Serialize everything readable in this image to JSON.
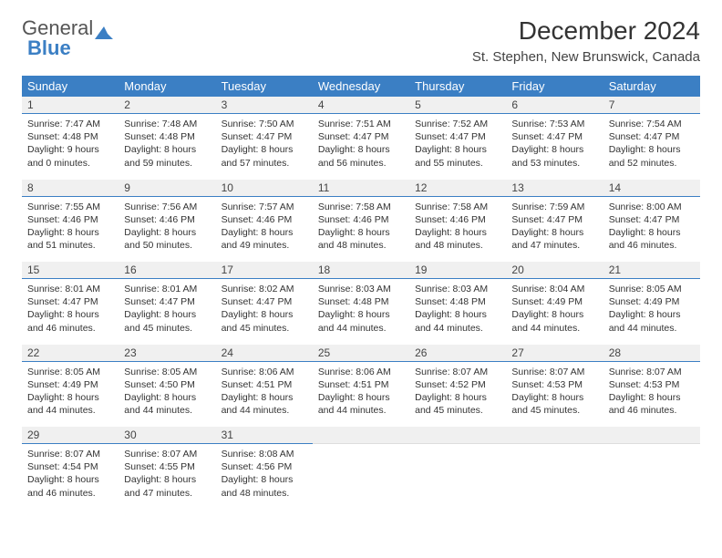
{
  "logo": {
    "text1": "General",
    "text2": "Blue"
  },
  "title": "December 2024",
  "subtitle": "St. Stephen, New Brunswick, Canada",
  "header_bg": "#3b7fc4",
  "header_text_color": "#ffffff",
  "daynum_bg": "#f0f0f0",
  "daynum_border": "#3b7fc4",
  "text_color": "#333333",
  "font_family": "Arial, Helvetica, sans-serif",
  "title_fontsize": 28,
  "subtitle_fontsize": 15,
  "header_fontsize": 13,
  "daynum_fontsize": 12,
  "cell_fontsize": 10.5,
  "days": [
    "Sunday",
    "Monday",
    "Tuesday",
    "Wednesday",
    "Thursday",
    "Friday",
    "Saturday"
  ],
  "weeks": [
    [
      {
        "n": "1",
        "sunrise": "7:47 AM",
        "sunset": "4:48 PM",
        "daylight": "9 hours and 0 minutes."
      },
      {
        "n": "2",
        "sunrise": "7:48 AM",
        "sunset": "4:48 PM",
        "daylight": "8 hours and 59 minutes."
      },
      {
        "n": "3",
        "sunrise": "7:50 AM",
        "sunset": "4:47 PM",
        "daylight": "8 hours and 57 minutes."
      },
      {
        "n": "4",
        "sunrise": "7:51 AM",
        "sunset": "4:47 PM",
        "daylight": "8 hours and 56 minutes."
      },
      {
        "n": "5",
        "sunrise": "7:52 AM",
        "sunset": "4:47 PM",
        "daylight": "8 hours and 55 minutes."
      },
      {
        "n": "6",
        "sunrise": "7:53 AM",
        "sunset": "4:47 PM",
        "daylight": "8 hours and 53 minutes."
      },
      {
        "n": "7",
        "sunrise": "7:54 AM",
        "sunset": "4:47 PM",
        "daylight": "8 hours and 52 minutes."
      }
    ],
    [
      {
        "n": "8",
        "sunrise": "7:55 AM",
        "sunset": "4:46 PM",
        "daylight": "8 hours and 51 minutes."
      },
      {
        "n": "9",
        "sunrise": "7:56 AM",
        "sunset": "4:46 PM",
        "daylight": "8 hours and 50 minutes."
      },
      {
        "n": "10",
        "sunrise": "7:57 AM",
        "sunset": "4:46 PM",
        "daylight": "8 hours and 49 minutes."
      },
      {
        "n": "11",
        "sunrise": "7:58 AM",
        "sunset": "4:46 PM",
        "daylight": "8 hours and 48 minutes."
      },
      {
        "n": "12",
        "sunrise": "7:58 AM",
        "sunset": "4:46 PM",
        "daylight": "8 hours and 48 minutes."
      },
      {
        "n": "13",
        "sunrise": "7:59 AM",
        "sunset": "4:47 PM",
        "daylight": "8 hours and 47 minutes."
      },
      {
        "n": "14",
        "sunrise": "8:00 AM",
        "sunset": "4:47 PM",
        "daylight": "8 hours and 46 minutes."
      }
    ],
    [
      {
        "n": "15",
        "sunrise": "8:01 AM",
        "sunset": "4:47 PM",
        "daylight": "8 hours and 46 minutes."
      },
      {
        "n": "16",
        "sunrise": "8:01 AM",
        "sunset": "4:47 PM",
        "daylight": "8 hours and 45 minutes."
      },
      {
        "n": "17",
        "sunrise": "8:02 AM",
        "sunset": "4:47 PM",
        "daylight": "8 hours and 45 minutes."
      },
      {
        "n": "18",
        "sunrise": "8:03 AM",
        "sunset": "4:48 PM",
        "daylight": "8 hours and 44 minutes."
      },
      {
        "n": "19",
        "sunrise": "8:03 AM",
        "sunset": "4:48 PM",
        "daylight": "8 hours and 44 minutes."
      },
      {
        "n": "20",
        "sunrise": "8:04 AM",
        "sunset": "4:49 PM",
        "daylight": "8 hours and 44 minutes."
      },
      {
        "n": "21",
        "sunrise": "8:05 AM",
        "sunset": "4:49 PM",
        "daylight": "8 hours and 44 minutes."
      }
    ],
    [
      {
        "n": "22",
        "sunrise": "8:05 AM",
        "sunset": "4:49 PM",
        "daylight": "8 hours and 44 minutes."
      },
      {
        "n": "23",
        "sunrise": "8:05 AM",
        "sunset": "4:50 PM",
        "daylight": "8 hours and 44 minutes."
      },
      {
        "n": "24",
        "sunrise": "8:06 AM",
        "sunset": "4:51 PM",
        "daylight": "8 hours and 44 minutes."
      },
      {
        "n": "25",
        "sunrise": "8:06 AM",
        "sunset": "4:51 PM",
        "daylight": "8 hours and 44 minutes."
      },
      {
        "n": "26",
        "sunrise": "8:07 AM",
        "sunset": "4:52 PM",
        "daylight": "8 hours and 45 minutes."
      },
      {
        "n": "27",
        "sunrise": "8:07 AM",
        "sunset": "4:53 PM",
        "daylight": "8 hours and 45 minutes."
      },
      {
        "n": "28",
        "sunrise": "8:07 AM",
        "sunset": "4:53 PM",
        "daylight": "8 hours and 46 minutes."
      }
    ],
    [
      {
        "n": "29",
        "sunrise": "8:07 AM",
        "sunset": "4:54 PM",
        "daylight": "8 hours and 46 minutes."
      },
      {
        "n": "30",
        "sunrise": "8:07 AM",
        "sunset": "4:55 PM",
        "daylight": "8 hours and 47 minutes."
      },
      {
        "n": "31",
        "sunrise": "8:08 AM",
        "sunset": "4:56 PM",
        "daylight": "8 hours and 48 minutes."
      },
      null,
      null,
      null,
      null
    ]
  ],
  "labels": {
    "sunrise": "Sunrise:",
    "sunset": "Sunset:",
    "daylight": "Daylight:"
  }
}
